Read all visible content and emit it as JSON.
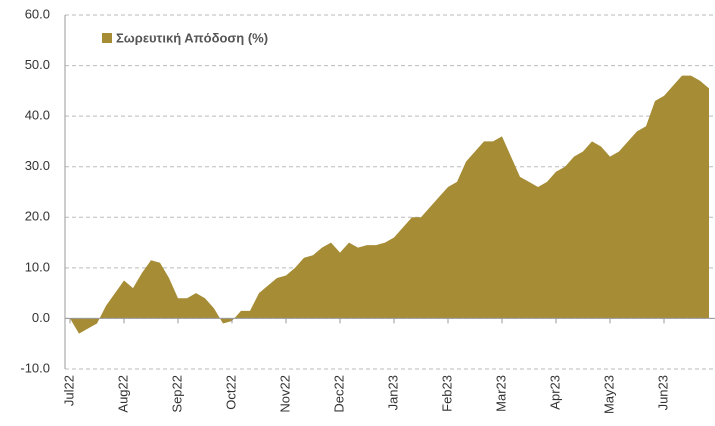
{
  "chart_data": {
    "type": "area",
    "categories": [
      "Jul22",
      null,
      null,
      null,
      null,
      null,
      "Aug22",
      null,
      null,
      null,
      null,
      null,
      "Sep22",
      null,
      null,
      null,
      null,
      null,
      "Oct22",
      null,
      null,
      null,
      null,
      null,
      "Nov22",
      null,
      null,
      null,
      null,
      null,
      "Dec22",
      null,
      null,
      null,
      null,
      null,
      "Jan23",
      null,
      null,
      null,
      null,
      null,
      "Feb23",
      null,
      null,
      null,
      null,
      null,
      "Mar23",
      null,
      null,
      null,
      null,
      null,
      "Apr23",
      null,
      null,
      null,
      null,
      null,
      "May23",
      null,
      null,
      null,
      null,
      null,
      "Jun23",
      null,
      null,
      null,
      null,
      null
    ],
    "series": [
      {
        "name": "Σωρευτική Απόδοση (%)",
        "color": "#a68c35",
        "values": [
          0,
          -3,
          -2,
          -1,
          2.5,
          5,
          7.5,
          6,
          9,
          11.5,
          11,
          8,
          4,
          4,
          5,
          4,
          2,
          -1,
          -0.5,
          1.5,
          1.5,
          5,
          6.5,
          8,
          8.5,
          10,
          12,
          12.5,
          14,
          15,
          13,
          15,
          14,
          14.5,
          14.5,
          15,
          16,
          18,
          20,
          20,
          22,
          24,
          26,
          27,
          31,
          33,
          35,
          35,
          36,
          32,
          28,
          27,
          26,
          27,
          29,
          30,
          32,
          33,
          35,
          34,
          32,
          33,
          35,
          37,
          38,
          43,
          44,
          46,
          48,
          48,
          47,
          45.5
        ]
      }
    ],
    "ylim": [
      -10,
      60
    ],
    "yticks": [
      {
        "value": -10,
        "label": "-10.0"
      },
      {
        "value": 0,
        "label": "0.0"
      },
      {
        "value": 10,
        "label": "10.0"
      },
      {
        "value": 20,
        "label": "20.0"
      },
      {
        "value": 30,
        "label": "30.0"
      },
      {
        "value": 40,
        "label": "40.0"
      },
      {
        "value": 50,
        "label": "50.0"
      },
      {
        "value": 60,
        "label": "60.0"
      }
    ],
    "grid": true,
    "legend": "upper left"
  }
}
